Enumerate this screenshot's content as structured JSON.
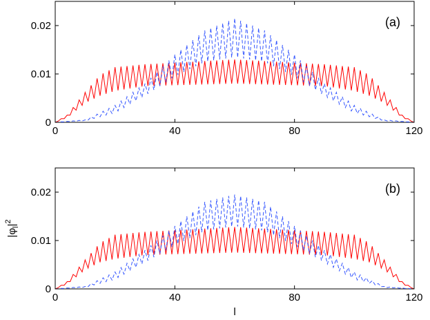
{
  "chart_data": [
    {
      "type": "line",
      "panel_label": "(a)",
      "xlabel": "",
      "ylabel": "",
      "xlim": [
        0,
        120
      ],
      "ylim": [
        0,
        0.025
      ],
      "xticks": [
        0,
        40,
        80,
        120
      ],
      "yticks": [
        0,
        0.01,
        0.02
      ],
      "xtick_labels": [
        "0",
        "40",
        "80",
        "120"
      ],
      "ytick_labels": [
        "0",
        "0.01",
        "0.02"
      ],
      "series": [
        {
          "style": "solid",
          "color": "#ff0000",
          "envelope_upper": [
            [
              0,
              0
            ],
            [
              4,
              0.0015
            ],
            [
              10,
              0.0062
            ],
            [
              15,
              0.0098
            ],
            [
              20,
              0.0114
            ],
            [
              30,
              0.012
            ],
            [
              60,
              0.013
            ],
            [
              90,
              0.012
            ],
            [
              100,
              0.0114
            ],
            [
              105,
              0.0098
            ],
            [
              110,
              0.0062
            ],
            [
              116,
              0.0015
            ],
            [
              120,
              0
            ]
          ],
          "envelope_lower": [
            [
              0,
              0
            ],
            [
              4,
              0.001
            ],
            [
              10,
              0.004
            ],
            [
              15,
              0.0055
            ],
            [
              20,
              0.0065
            ],
            [
              30,
              0.0075
            ],
            [
              60,
              0.008
            ],
            [
              90,
              0.0075
            ],
            [
              100,
              0.0065
            ],
            [
              105,
              0.0055
            ],
            [
              110,
              0.004
            ],
            [
              116,
              0.001
            ],
            [
              120,
              0
            ]
          ]
        },
        {
          "style": "dashed",
          "color": "#3355ff",
          "envelope_upper": [
            [
              0,
              0
            ],
            [
              10,
              0.0005
            ],
            [
              20,
              0.0035
            ],
            [
              30,
              0.008
            ],
            [
              40,
              0.014
            ],
            [
              50,
              0.019
            ],
            [
              60,
              0.0215
            ],
            [
              70,
              0.019
            ],
            [
              80,
              0.014
            ],
            [
              90,
              0.008
            ],
            [
              100,
              0.0035
            ],
            [
              110,
              0.0005
            ],
            [
              120,
              0
            ]
          ],
          "envelope_lower": [
            [
              0,
              0
            ],
            [
              10,
              0.0003
            ],
            [
              20,
              0.002
            ],
            [
              30,
              0.0055
            ],
            [
              40,
              0.0095
            ],
            [
              50,
              0.0125
            ],
            [
              60,
              0.0135
            ],
            [
              70,
              0.0125
            ],
            [
              80,
              0.0095
            ],
            [
              90,
              0.0055
            ],
            [
              100,
              0.002
            ],
            [
              110,
              0.0003
            ],
            [
              120,
              0
            ]
          ]
        }
      ]
    },
    {
      "type": "line",
      "panel_label": "(b)",
      "xlabel": "l",
      "ylabel": "|φ_l|^2",
      "ylabel_base": "|φ",
      "ylabel_sub": "l",
      "ylabel_end": "|",
      "ylabel_sup": "2",
      "xlim": [
        0,
        120
      ],
      "ylim": [
        0,
        0.025
      ],
      "xticks": [
        0,
        40,
        80,
        120
      ],
      "yticks": [
        0,
        0.01,
        0.02
      ],
      "xtick_labels": [
        "0",
        "40",
        "80",
        "120"
      ],
      "ytick_labels": [
        "0",
        "0.01",
        "0.02"
      ],
      "series": [
        {
          "style": "solid",
          "color": "#ff0000",
          "envelope_upper": [
            [
              0,
              0
            ],
            [
              4,
              0.0015
            ],
            [
              10,
              0.006
            ],
            [
              15,
              0.0095
            ],
            [
              20,
              0.0112
            ],
            [
              30,
              0.0118
            ],
            [
              60,
              0.0128
            ],
            [
              90,
              0.0118
            ],
            [
              100,
              0.0112
            ],
            [
              105,
              0.0095
            ],
            [
              110,
              0.006
            ],
            [
              116,
              0.0015
            ],
            [
              120,
              0
            ]
          ],
          "envelope_lower": [
            [
              0,
              0
            ],
            [
              4,
              0.001
            ],
            [
              10,
              0.004
            ],
            [
              15,
              0.0055
            ],
            [
              20,
              0.0062
            ],
            [
              30,
              0.007
            ],
            [
              60,
              0.0075
            ],
            [
              90,
              0.007
            ],
            [
              100,
              0.0062
            ],
            [
              105,
              0.0055
            ],
            [
              110,
              0.004
            ],
            [
              116,
              0.001
            ],
            [
              120,
              0
            ]
          ]
        },
        {
          "style": "dashed",
          "color": "#3355ff",
          "envelope_upper": [
            [
              0,
              0
            ],
            [
              10,
              0.0005
            ],
            [
              20,
              0.0035
            ],
            [
              30,
              0.008
            ],
            [
              40,
              0.013
            ],
            [
              50,
              0.018
            ],
            [
              60,
              0.0195
            ],
            [
              70,
              0.018
            ],
            [
              80,
              0.013
            ],
            [
              90,
              0.008
            ],
            [
              100,
              0.0035
            ],
            [
              110,
              0.0005
            ],
            [
              120,
              0
            ]
          ],
          "envelope_lower": [
            [
              0,
              0
            ],
            [
              10,
              0.0003
            ],
            [
              20,
              0.002
            ],
            [
              30,
              0.0055
            ],
            [
              40,
              0.009
            ],
            [
              50,
              0.012
            ],
            [
              60,
              0.013
            ],
            [
              70,
              0.012
            ],
            [
              80,
              0.009
            ],
            [
              90,
              0.0055
            ],
            [
              100,
              0.002
            ],
            [
              110,
              0.0003
            ],
            [
              120,
              0
            ]
          ]
        }
      ]
    }
  ]
}
